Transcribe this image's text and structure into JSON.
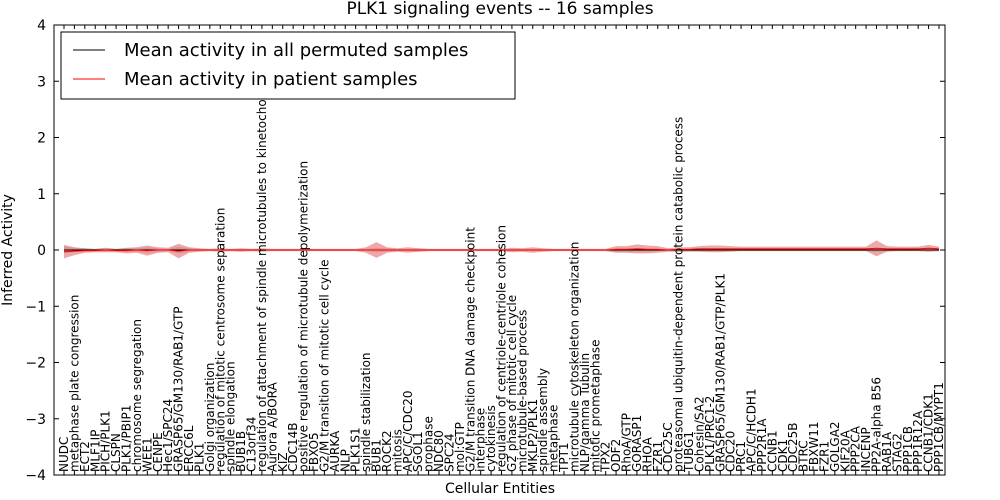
{
  "chart_data": {
    "type": "line",
    "title": "PLK1 signaling events -- 16 samples",
    "xlabel": "Cellular Entities",
    "ylabel": "Inferred Activity",
    "ylim": [
      -4,
      4
    ],
    "yticks": [
      "4",
      "3",
      "2",
      "1",
      "0",
      "−1",
      "−2",
      "−3",
      "−4"
    ],
    "ytick_values": [
      4,
      3,
      2,
      1,
      0,
      -1,
      -2,
      -3,
      -4
    ],
    "legend": {
      "placement": "top-left"
    },
    "series": [
      {
        "name": "Mean activity in all permuted samples",
        "color": "#000000"
      },
      {
        "name": "Mean activity in patient samples",
        "color": "#ff0000"
      }
    ],
    "categories": [
      "NUDC",
      "metaphase plate congression",
      "ECT2",
      "MLF1IP",
      "PICH/PLK1",
      "CLSPN",
      "PLK1/PBIP1",
      "chromosome segregation",
      "WEE1",
      "CENPE",
      "Hec1/SPC24",
      "GRASP65/GM130/RAB1/GTP",
      "ERCC6L",
      "PLK1",
      "Golgi organization",
      "regulation of mitotic centrosome separation",
      "spindle elongation",
      "BUB1B",
      "C13orf34",
      "regulation of attachment of spindle microtubules to kinetochore",
      "Aurora A/BORA",
      "KIZ",
      "CDC14B",
      "positive regulation of microtubule depolymerization",
      "FBXO5",
      "G2/M transition of mitotic cell cycle",
      "AURKA",
      "NLP",
      "PLK1S1",
      "spindle stabilization",
      "BUB1",
      "ROCK2",
      "mitosis",
      "APC/C/CDC20",
      "SGOL1",
      "prophase",
      "NDC80",
      "SPC24",
      "mol:GTP",
      "G2/M transition DNA damage checkpoint",
      "interphase",
      "cytokinesis",
      "regulation of centriole-centriole cohesion",
      "G2 phase of mitotic cell cycle",
      "microtubule-based process",
      "MKLP2/PLK1",
      "spindle assembly",
      "metaphase",
      "TPT1",
      "microtubule cytoskeleton organization",
      "NLP/gamma Tubulin",
      "mitotic prometaphase",
      "TPX2",
      "ODF2",
      "RhoA/GTP",
      "GORASP1",
      "RHOA",
      "FZR1",
      "CDC25C",
      "proteasomal ubiquitin-dependent protein catabolic process",
      "TUBG1",
      "Cohesin/SA2",
      "PLK1/PRC1-2",
      "GRASP65/GM130/RAB1/GTP/PLK1",
      "CDC20",
      "PRC1",
      "APC/C/HCDH1",
      "PPP2R1A",
      "CCNB1",
      "CDK1",
      "CDC25B",
      "BTRC",
      "FBXW11",
      "FZR1",
      "GOLGA2",
      "KIF20A",
      "PPP2CA",
      "INCENP",
      "PP2A-alpha B56",
      "RAB1A",
      "STAG2",
      "PPP1CB",
      "PPP1R12A",
      "CCNB1/CDK1",
      "PPP1CB/MYPT1"
    ],
    "permuted_mean": [
      0.0,
      0.0,
      0.0,
      0.0,
      0.0,
      0.0,
      0.0,
      0.0,
      0.0,
      0.0,
      0.0,
      0.0,
      0.0,
      0.0,
      0.0,
      0.0,
      0.0,
      0.0,
      0.0,
      0.0,
      0.0,
      0.0,
      0.0,
      0.0,
      0.0,
      0.0,
      0.0,
      0.0,
      0.0,
      0.0,
      0.0,
      0.0,
      0.0,
      0.0,
      0.0,
      0.0,
      0.0,
      0.0,
      0.0,
      0.0,
      0.0,
      0.0,
      0.0,
      0.0,
      0.0,
      0.0,
      0.0,
      0.0,
      0.0,
      0.0,
      0.0,
      0.0,
      0.0,
      0.0,
      0.0,
      0.0,
      0.0,
      0.0,
      0.0,
      0.0,
      0.0,
      0.0,
      0.0,
      0.0,
      0.0,
      0.0,
      0.0,
      0.0,
      0.0,
      0.0,
      0.0,
      0.0,
      0.0,
      0.0,
      0.0,
      0.0,
      0.0,
      0.0,
      0.0,
      0.0,
      0.0,
      0.0,
      0.0,
      0.0,
      0.0
    ],
    "permuted_band": [
      0.06,
      0.04,
      0.03,
      0.02,
      0.03,
      0.02,
      0.03,
      0.03,
      0.05,
      0.03,
      0.02,
      0.06,
      0.03,
      0.02,
      0.02,
      0.02,
      0.02,
      0.02,
      0.02,
      0.02,
      0.02,
      0.02,
      0.02,
      0.02,
      0.02,
      0.02,
      0.02,
      0.02,
      0.02,
      0.02,
      0.04,
      0.03,
      0.02,
      0.02,
      0.03,
      0.02,
      0.02,
      0.02,
      0.02,
      0.02,
      0.02,
      0.02,
      0.02,
      0.02,
      0.02,
      0.02,
      0.02,
      0.02,
      0.02,
      0.02,
      0.02,
      0.02,
      0.02,
      0.03,
      0.03,
      0.03,
      0.03,
      0.02,
      0.02,
      0.02,
      0.02,
      0.02,
      0.02,
      0.02,
      0.02,
      0.02,
      0.02,
      0.02,
      0.02,
      0.02,
      0.02,
      0.02,
      0.02,
      0.02,
      0.02,
      0.02,
      0.02,
      0.02,
      0.03,
      0.02,
      0.02,
      0.02,
      0.02,
      0.02,
      0.02
    ],
    "patient_mean": [
      -0.03,
      -0.02,
      -0.01,
      -0.01,
      0.0,
      -0.01,
      -0.01,
      0.0,
      -0.01,
      0.0,
      0.0,
      -0.02,
      0.0,
      0.0,
      0.0,
      0.0,
      0.0,
      0.0,
      0.0,
      0.0,
      0.0,
      0.0,
      0.0,
      0.0,
      0.0,
      0.0,
      0.0,
      0.0,
      0.0,
      0.0,
      0.0,
      0.0,
      0.0,
      0.0,
      0.0,
      0.0,
      0.0,
      0.0,
      0.0,
      0.0,
      0.0,
      0.0,
      0.0,
      0.0,
      0.0,
      0.0,
      0.0,
      0.0,
      0.0,
      0.0,
      0.0,
      0.0,
      0.0,
      0.01,
      0.01,
      0.02,
      0.01,
      0.01,
      0.0,
      0.01,
      0.01,
      0.02,
      0.02,
      0.02,
      0.02,
      0.02,
      0.02,
      0.02,
      0.02,
      0.02,
      0.02,
      0.02,
      0.02,
      0.02,
      0.02,
      0.02,
      0.02,
      0.02,
      0.03,
      0.02,
      0.02,
      0.02,
      0.02,
      0.03,
      0.02
    ],
    "patient_band": [
      0.12,
      0.07,
      0.04,
      0.03,
      0.04,
      0.03,
      0.05,
      0.05,
      0.09,
      0.05,
      0.04,
      0.13,
      0.05,
      0.03,
      0.02,
      0.03,
      0.02,
      0.03,
      0.02,
      0.03,
      0.02,
      0.02,
      0.02,
      0.02,
      0.02,
      0.02,
      0.02,
      0.02,
      0.02,
      0.05,
      0.14,
      0.05,
      0.03,
      0.05,
      0.03,
      0.02,
      0.02,
      0.02,
      0.02,
      0.02,
      0.02,
      0.02,
      0.02,
      0.04,
      0.03,
      0.05,
      0.03,
      0.02,
      0.02,
      0.02,
      0.02,
      0.02,
      0.02,
      0.06,
      0.06,
      0.08,
      0.07,
      0.06,
      0.03,
      0.04,
      0.04,
      0.05,
      0.06,
      0.06,
      0.05,
      0.04,
      0.04,
      0.04,
      0.04,
      0.04,
      0.04,
      0.04,
      0.04,
      0.04,
      0.04,
      0.04,
      0.04,
      0.04,
      0.14,
      0.05,
      0.04,
      0.04,
      0.04,
      0.06,
      0.04
    ]
  }
}
